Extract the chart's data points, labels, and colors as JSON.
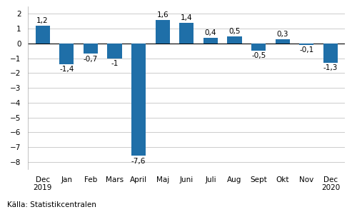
{
  "categories": [
    "Dec\n2019",
    "Jan",
    "Feb",
    "Mars",
    "April",
    "Maj",
    "Juni",
    "Juli",
    "Aug",
    "Sept",
    "Okt",
    "Nov",
    "Dec\n2020"
  ],
  "values": [
    1.2,
    -1.4,
    -0.7,
    -1.0,
    -7.6,
    1.6,
    1.4,
    0.4,
    0.5,
    -0.5,
    0.3,
    -0.1,
    -1.3
  ],
  "bar_color": "#1f6fa8",
  "ylim": [
    -8.5,
    2.5
  ],
  "yticks": [
    -8,
    -7,
    -6,
    -5,
    -4,
    -3,
    -2,
    -1,
    0,
    1,
    2
  ],
  "source": "Källa: Statistikcentralen",
  "background_color": "#ffffff",
  "grid_color": "#cccccc",
  "label_fontsize": 7.5,
  "tick_fontsize": 7.5,
  "source_fontsize": 7.5
}
